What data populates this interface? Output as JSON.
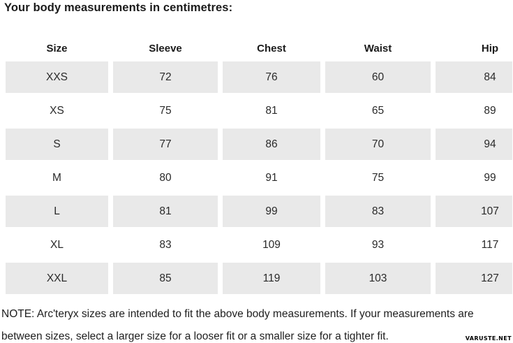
{
  "title": "Your body measurements in centimetres:",
  "table": {
    "headers": [
      "Size",
      "Sleeve",
      "Chest",
      "Waist",
      "Hip"
    ],
    "rows": [
      [
        "XXS",
        "72",
        "76",
        "60",
        "84"
      ],
      [
        "XS",
        "75",
        "81",
        "65",
        "89"
      ],
      [
        "S",
        "77",
        "86",
        "70",
        "94"
      ],
      [
        "M",
        "80",
        "91",
        "75",
        "99"
      ],
      [
        "L",
        "81",
        "99",
        "83",
        "107"
      ],
      [
        "XL",
        "83",
        "109",
        "93",
        "117"
      ],
      [
        "XXL",
        "85",
        "119",
        "103",
        "127"
      ]
    ]
  },
  "note": "NOTE: Arc'teryx sizes are intended to fit the above body measurements. If your measurements are between sizes, select a larger size for a looser fit or a smaller size for a tighter fit.",
  "watermark": "VARUSTE.NET",
  "colors": {
    "row_stripe": "#e9e9e9",
    "text": "#1e1e1e",
    "background": "#ffffff"
  }
}
